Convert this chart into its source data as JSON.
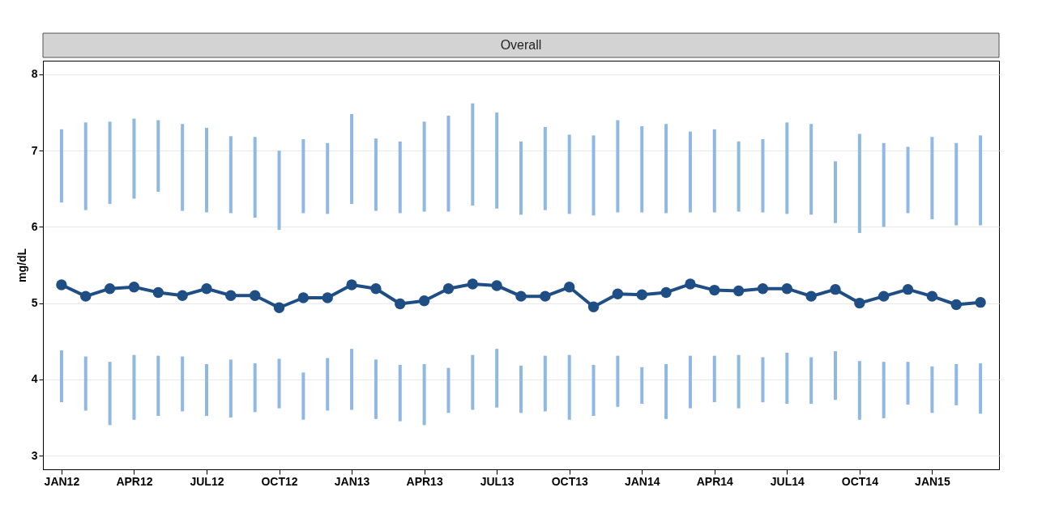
{
  "chart_data": {
    "type": "line",
    "title": "Overall",
    "ylabel": "mg/dL",
    "categories": [
      "JAN12",
      null,
      null,
      "APR12",
      null,
      null,
      "JUL12",
      null,
      null,
      "OCT12",
      null,
      null,
      "JAN13",
      null,
      null,
      "APR13",
      null,
      null,
      "JUL13",
      null,
      null,
      "OCT13",
      null,
      null,
      "JAN14",
      null,
      null,
      "APR14",
      null,
      null,
      "JUL14",
      null,
      null,
      "OCT14",
      null,
      null,
      "JAN15",
      null,
      null
    ],
    "series": [
      {
        "type": "bar",
        "color": "#8fb8e3",
        "base": [
          6.32,
          6.22,
          6.3,
          6.37,
          6.46,
          6.21,
          6.19,
          6.18,
          6.12,
          5.96,
          6.18,
          6.17,
          6.3,
          6.21,
          6.18,
          6.2,
          6.2,
          6.28,
          6.24,
          6.16,
          6.22,
          6.17,
          6.15,
          6.19,
          6.19,
          6.18,
          6.19,
          6.19,
          6.2,
          6.19,
          6.17,
          6.16,
          6.05,
          5.92,
          6.0,
          6.18,
          6.1,
          6.02,
          6.02
        ],
        "values": [
          0.96,
          1.15,
          1.08,
          1.05,
          0.94,
          1.14,
          1.11,
          1.01,
          1.06,
          1.04,
          0.97,
          0.93,
          1.18,
          0.95,
          0.94,
          1.18,
          1.26,
          1.34,
          1.26,
          0.96,
          1.09,
          1.04,
          1.05,
          1.21,
          1.13,
          1.17,
          1.06,
          1.09,
          0.92,
          0.96,
          1.2,
          1.19,
          0.81,
          1.3,
          1.1,
          0.87,
          1.08,
          1.08,
          1.18
        ]
      },
      {
        "type": "bar",
        "color": "#8fb8e3",
        "base": [
          3.7,
          3.59,
          3.4,
          3.47,
          3.52,
          3.58,
          3.52,
          3.5,
          3.57,
          3.62,
          3.47,
          3.59,
          3.6,
          3.48,
          3.45,
          3.4,
          3.56,
          3.6,
          3.63,
          3.56,
          3.58,
          3.47,
          3.52,
          3.64,
          3.68,
          3.48,
          3.62,
          3.7,
          3.62,
          3.7,
          3.68,
          3.68,
          3.73,
          3.47,
          3.49,
          3.67,
          3.56,
          3.66,
          3.55
        ],
        "values": [
          0.68,
          0.71,
          0.83,
          0.85,
          0.79,
          0.72,
          0.68,
          0.76,
          0.64,
          0.65,
          0.62,
          0.69,
          0.8,
          0.78,
          0.74,
          0.8,
          0.59,
          0.72,
          0.77,
          0.62,
          0.73,
          0.85,
          0.67,
          0.67,
          0.48,
          0.72,
          0.69,
          0.61,
          0.7,
          0.59,
          0.67,
          0.61,
          0.64,
          0.77,
          0.74,
          0.56,
          0.61,
          0.54,
          0.66
        ]
      },
      {
        "color": "#1f4e85",
        "values": [
          5.24,
          5.09,
          5.19,
          5.21,
          5.14,
          5.1,
          5.19,
          5.1,
          5.1,
          4.94,
          5.07,
          5.07,
          5.24,
          5.19,
          4.99,
          5.03,
          5.19,
          5.25,
          5.23,
          5.09,
          5.09,
          5.21,
          4.95,
          5.12,
          5.11,
          5.14,
          5.25,
          5.17,
          5.16,
          5.19,
          5.19,
          5.09,
          5.18,
          5.0,
          5.09,
          5.18,
          5.09,
          4.98,
          5.01
        ]
      }
    ],
    "ylim": [
      2.82,
      8.18
    ],
    "yticks": [
      3,
      4,
      5,
      6,
      7,
      8
    ],
    "grid": "y",
    "marker": "circle",
    "line_style": "solid"
  }
}
